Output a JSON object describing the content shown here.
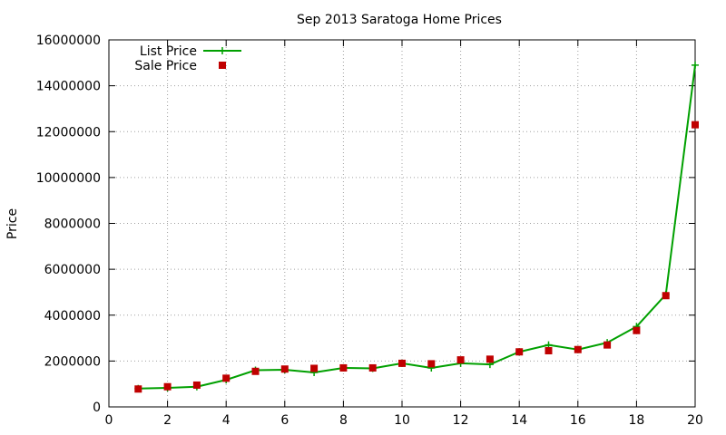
{
  "chart_data": {
    "type": "line",
    "title": "Sep 2013 Saratoga Home Prices",
    "xlabel": "",
    "ylabel": "Price",
    "xlim": [
      0,
      20
    ],
    "ylim": [
      0,
      16000000
    ],
    "x_ticks": [
      0,
      2,
      4,
      6,
      8,
      10,
      12,
      14,
      16,
      18,
      20
    ],
    "y_ticks": [
      0,
      2000000,
      4000000,
      6000000,
      8000000,
      10000000,
      12000000,
      14000000,
      16000000
    ],
    "grid": true,
    "legend_position": "top-left",
    "series": [
      {
        "name": "List Price",
        "style": "line-with-plus-markers",
        "color": "#00a000",
        "x": [
          1,
          2,
          3,
          4,
          5,
          6,
          7,
          8,
          9,
          10,
          11,
          12,
          13,
          14,
          15,
          16,
          17,
          18,
          19,
          20
        ],
        "y": [
          800000,
          830000,
          880000,
          1180000,
          1600000,
          1620000,
          1500000,
          1700000,
          1680000,
          1900000,
          1700000,
          1900000,
          1850000,
          2400000,
          2700000,
          2500000,
          2800000,
          3500000,
          4900000,
          14900000
        ]
      },
      {
        "name": "Sale Price",
        "style": "square-markers",
        "color": "#c00000",
        "x": [
          1,
          2,
          3,
          4,
          5,
          6,
          7,
          8,
          9,
          10,
          11,
          12,
          13,
          14,
          15,
          16,
          17,
          18,
          19,
          20
        ],
        "y": [
          780000,
          880000,
          950000,
          1250000,
          1550000,
          1650000,
          1680000,
          1700000,
          1700000,
          1900000,
          1880000,
          2050000,
          2080000,
          2400000,
          2450000,
          2500000,
          2700000,
          3330000,
          4850000,
          12300000
        ]
      }
    ]
  }
}
